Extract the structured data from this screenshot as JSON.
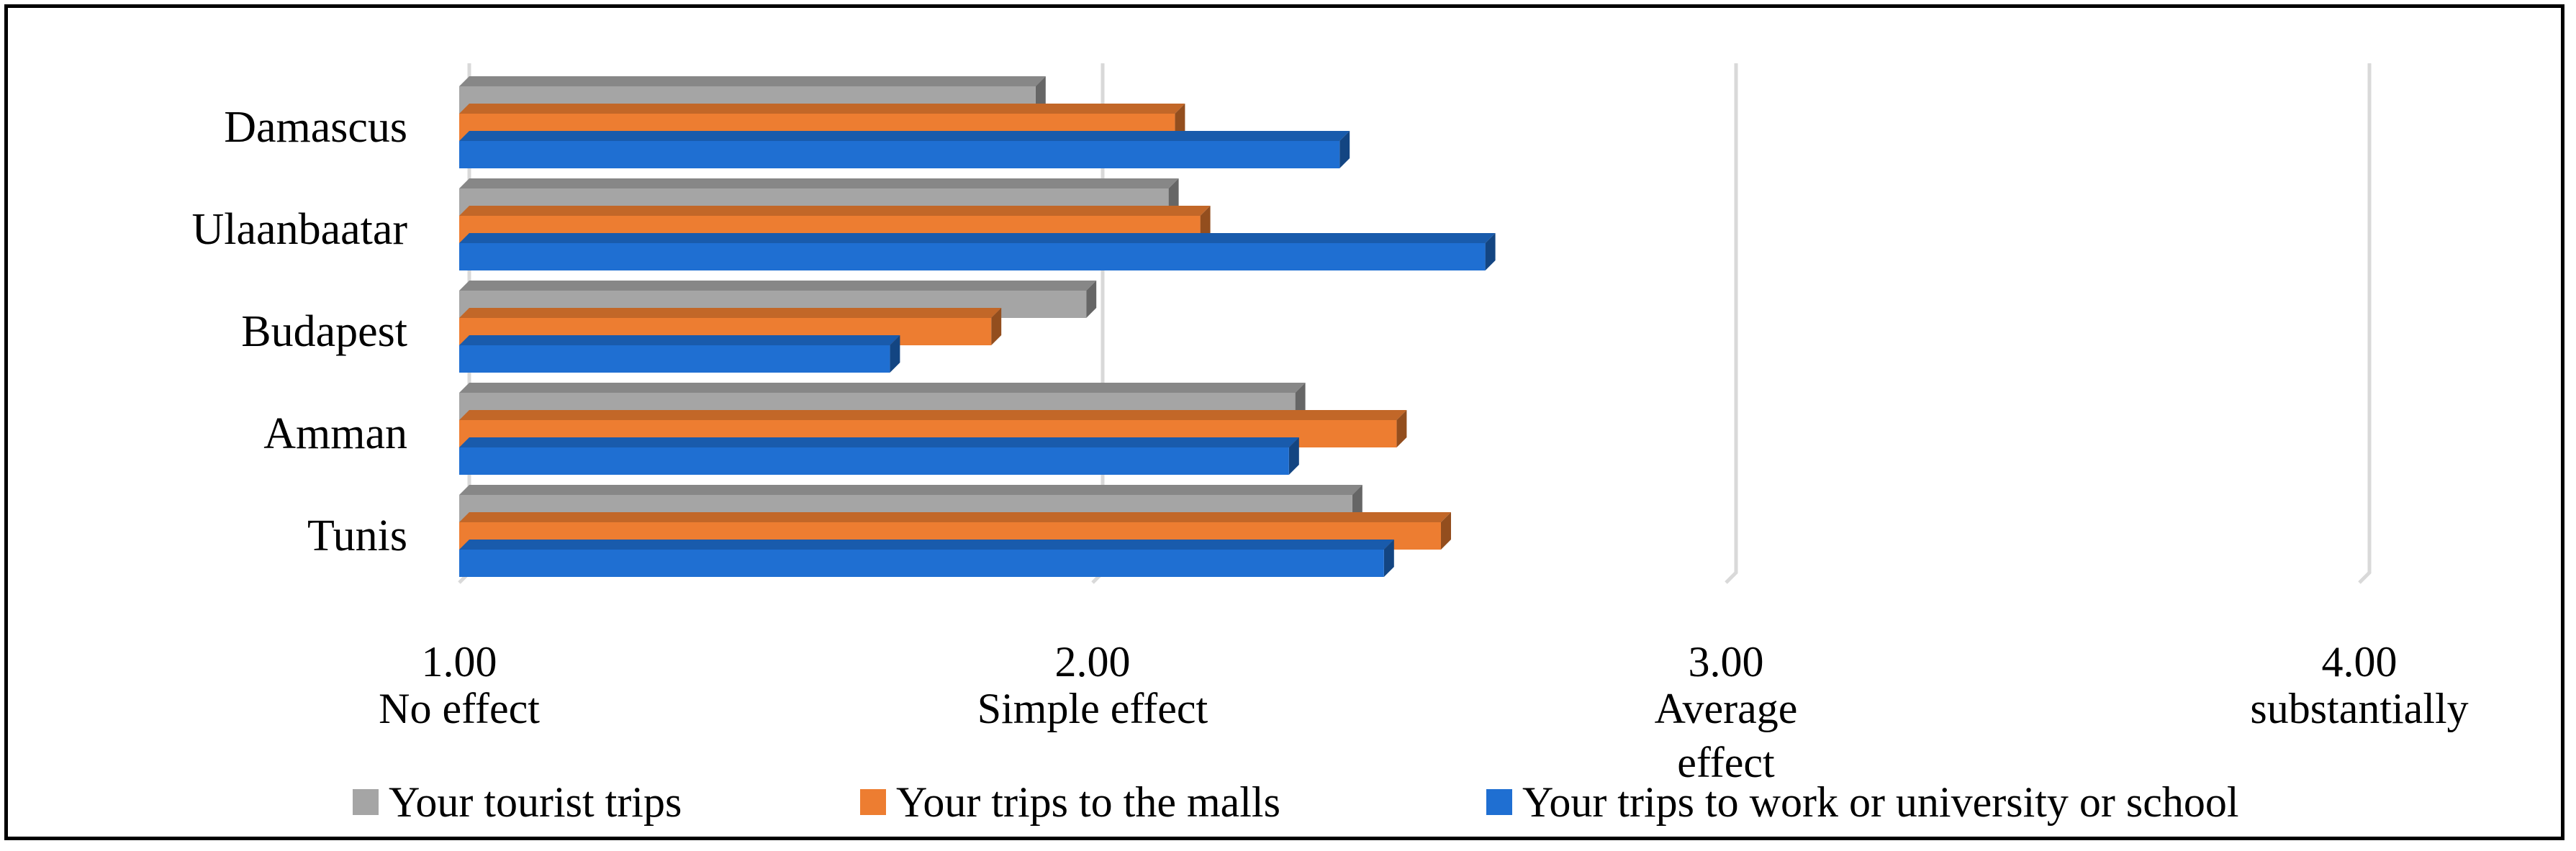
{
  "chart_data": {
    "type": "bar",
    "orientation": "horizontal",
    "style": "3d",
    "title": "",
    "xlabel": "",
    "ylabel": "",
    "categories": [
      "Damascus",
      "Ulaanbaatar",
      "Budapest",
      "Amman",
      "Tunis"
    ],
    "series": [
      {
        "name": "Your tourist trips",
        "color": "#a5a5a5",
        "values": [
          1.91,
          2.12,
          1.99,
          2.32,
          2.41
        ]
      },
      {
        "name": "Your trips to the malls",
        "color": "#ed7d31",
        "values": [
          2.13,
          2.17,
          1.84,
          2.48,
          2.55
        ]
      },
      {
        "name": "Your trips to work or university or school",
        "color": "#1f6fd2",
        "values": [
          2.39,
          2.62,
          1.68,
          2.31,
          2.46
        ]
      }
    ],
    "xlim": [
      1.0,
      4.0
    ],
    "ticks": [
      {
        "value": 1.0,
        "label": "1.00",
        "sublabel": [
          "No effect"
        ]
      },
      {
        "value": 2.0,
        "label": "2.00",
        "sublabel": [
          "Simple effect"
        ]
      },
      {
        "value": 3.0,
        "label": "3.00",
        "sublabel": [
          "Average",
          "effect"
        ]
      },
      {
        "value": 4.0,
        "label": "4.00",
        "sublabel": [
          "substantially"
        ]
      }
    ],
    "grid": true,
    "legend_position": "bottom"
  }
}
